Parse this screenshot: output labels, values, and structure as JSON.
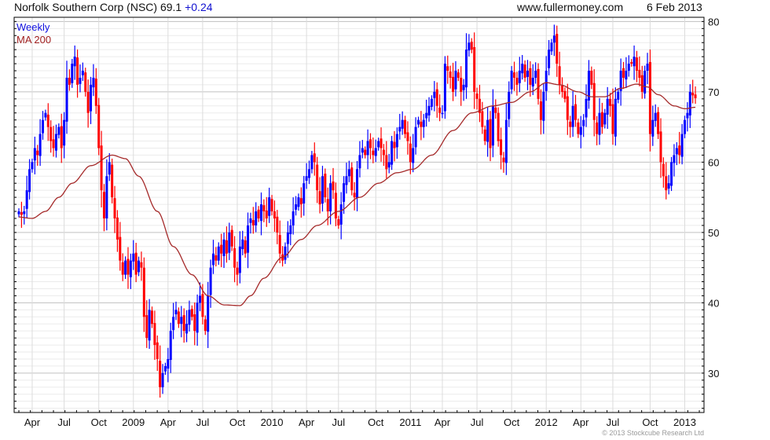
{
  "header": {
    "title": "Norfolk Southern Corp (NSC) 69.1",
    "change": "+0.24",
    "site": "www.fullermoney.com",
    "date": "6 Feb 2013"
  },
  "footer": {
    "copyright": "© 2013 Stockcube Research Ltd"
  },
  "colors": {
    "up": "#0000ff",
    "down": "#ff0000",
    "ma": "#a52a2a",
    "grid_minor": "#ebebeb",
    "grid_major": "#c0c0c0",
    "grid_vertical": "#dcdcdc"
  },
  "chart_data": {
    "type": "candlestick",
    "title": "Norfolk Southern Corp (NSC) 69.1 +0.24",
    "legend": [
      "Weekly",
      "MA 200"
    ],
    "legend_position": "top-left",
    "ylim": [
      24.4,
      80.6
    ],
    "y_ticks": [
      30,
      40,
      50,
      60,
      70,
      80
    ],
    "x_ticks": [
      {
        "label": "Apr",
        "week": 5
      },
      {
        "label": "Jul",
        "week": 17
      },
      {
        "label": "Oct",
        "week": 30
      },
      {
        "label": "2009",
        "week": 43
      },
      {
        "label": "Apr",
        "week": 56
      },
      {
        "label": "Jul",
        "week": 69
      },
      {
        "label": "Oct",
        "week": 82
      },
      {
        "label": "2010",
        "week": 95
      },
      {
        "label": "Apr",
        "week": 108
      },
      {
        "label": "Jul",
        "week": 120
      },
      {
        "label": "Oct",
        "week": 134
      },
      {
        "label": "2011",
        "week": 147
      },
      {
        "label": "Apr",
        "week": 159
      },
      {
        "label": "Jul",
        "week": 172
      },
      {
        "label": "Oct",
        "week": 185
      },
      {
        "label": "2012",
        "week": 198
      },
      {
        "label": "Apr",
        "week": 211
      },
      {
        "label": "Jul",
        "week": 223
      },
      {
        "label": "Oct",
        "week": 237
      },
      {
        "label": "2013",
        "week": 250
      }
    ],
    "weekly_close": [
      53,
      52.5,
      53,
      56,
      59,
      60,
      62,
      61,
      64,
      66,
      67,
      65,
      63,
      62,
      64,
      65,
      62,
      66,
      72,
      71,
      74,
      75,
      71,
      72,
      73,
      70,
      67,
      71,
      72,
      68,
      62,
      56,
      52,
      58,
      60,
      55,
      52,
      49,
      46,
      44,
      46,
      44,
      46,
      47,
      44,
      46,
      45,
      38,
      35,
      39,
      37,
      34,
      32,
      28,
      30,
      31,
      32,
      36,
      38,
      39,
      37,
      38,
      36,
      37,
      39,
      38,
      36,
      40,
      41,
      38,
      36,
      41,
      45,
      47,
      46,
      48,
      47,
      49,
      47,
      50,
      48,
      45,
      44,
      48,
      49,
      47,
      51,
      52,
      51,
      53,
      52,
      54,
      53,
      52,
      55,
      53,
      52,
      50,
      47,
      46,
      48,
      50,
      51,
      53,
      54,
      55,
      54,
      57,
      58,
      59,
      61,
      60,
      56,
      54,
      58,
      55,
      53,
      57,
      56,
      52,
      51,
      54,
      57,
      58,
      59,
      56,
      55,
      59,
      61,
      62,
      61,
      63,
      62,
      61,
      62,
      63,
      62,
      61,
      59,
      60,
      63,
      62,
      64,
      65,
      66,
      64,
      63,
      60,
      62,
      65,
      66,
      65,
      66,
      67,
      68,
      69,
      70,
      68,
      67,
      67,
      74,
      73,
      72,
      70,
      73,
      72,
      70,
      71,
      76,
      77,
      76,
      70,
      69,
      67,
      65,
      63,
      66,
      62,
      68,
      67,
      63,
      61,
      60,
      66,
      70,
      73,
      72,
      71,
      73,
      74,
      72,
      73,
      71,
      72,
      73,
      69,
      66,
      70,
      73,
      76,
      77,
      78,
      74,
      71,
      70,
      69,
      66,
      65,
      68,
      66,
      64,
      65,
      66,
      69,
      73,
      71,
      66,
      64,
      67,
      65,
      67,
      69,
      68,
      64,
      69,
      70,
      73,
      72,
      73,
      74,
      74,
      75,
      73,
      72,
      70,
      73,
      74,
      64,
      66,
      67,
      64,
      60,
      58,
      56,
      57,
      60,
      61,
      62,
      61,
      64,
      66,
      67,
      70,
      69.5,
      69.1
    ],
    "ma200": [
      [
        0,
        52.2
      ],
      [
        5,
        52
      ],
      [
        10,
        53
      ],
      [
        15,
        55
      ],
      [
        20,
        57
      ],
      [
        27,
        59.5
      ],
      [
        35,
        61
      ],
      [
        40,
        60.5
      ],
      [
        45,
        58
      ],
      [
        52,
        53
      ],
      [
        58,
        48
      ],
      [
        65,
        44
      ],
      [
        71,
        41
      ],
      [
        77,
        39.7
      ],
      [
        83,
        39.6
      ],
      [
        87,
        41
      ],
      [
        92,
        43.5
      ],
      [
        99,
        46.5
      ],
      [
        106,
        49
      ],
      [
        112,
        51
      ],
      [
        120,
        53
      ],
      [
        128,
        55
      ],
      [
        135,
        57
      ],
      [
        142,
        58.5
      ],
      [
        148,
        59
      ],
      [
        155,
        61
      ],
      [
        163,
        64.5
      ],
      [
        170,
        67
      ],
      [
        178,
        68
      ],
      [
        185,
        68.5
      ],
      [
        192,
        70
      ],
      [
        198,
        71.3
      ],
      [
        203,
        71
      ],
      [
        210,
        70
      ],
      [
        215,
        69.3
      ],
      [
        220,
        69.3
      ],
      [
        226,
        70.5
      ],
      [
        232,
        71.1
      ],
      [
        236,
        70.7
      ],
      [
        240,
        69.6
      ],
      [
        246,
        68
      ],
      [
        250,
        67.6
      ],
      [
        254,
        67.8
      ]
    ]
  }
}
